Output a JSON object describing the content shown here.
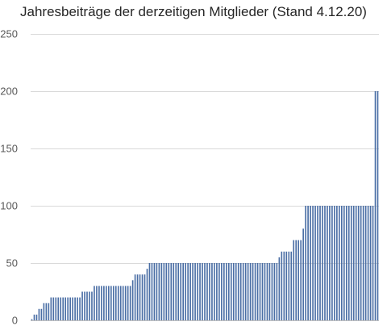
{
  "chart_data": {
    "type": "bar",
    "title": "Jahresbeiträge der derzeitigen Mitglieder (Stand 4.12.20)",
    "xlabel": "",
    "ylabel": "",
    "ylim": [
      0,
      250
    ],
    "yticks": [
      0,
      50,
      100,
      150,
      200,
      250
    ],
    "grid": true,
    "legend": "none",
    "bar_color": "#4a6ea5",
    "values": [
      1,
      5,
      5,
      10,
      10,
      15,
      15,
      15,
      20,
      20,
      20,
      20,
      20,
      20,
      20,
      20,
      20,
      20,
      20,
      20,
      20,
      25,
      25,
      25,
      25,
      25,
      30,
      30,
      30,
      30,
      30,
      30,
      30,
      30,
      30,
      30,
      30,
      30,
      30,
      30,
      30,
      30,
      35,
      40,
      40,
      40,
      40,
      40,
      45,
      50,
      50,
      50,
      50,
      50,
      50,
      50,
      50,
      50,
      50,
      50,
      50,
      50,
      50,
      50,
      50,
      50,
      50,
      50,
      50,
      50,
      50,
      50,
      50,
      50,
      50,
      50,
      50,
      50,
      50,
      50,
      50,
      50,
      50,
      50,
      50,
      50,
      50,
      50,
      50,
      50,
      50,
      50,
      50,
      50,
      50,
      50,
      50,
      50,
      50,
      50,
      50,
      50,
      50,
      55,
      60,
      60,
      60,
      60,
      60,
      70,
      70,
      70,
      70,
      80,
      100,
      100,
      100,
      100,
      100,
      100,
      100,
      100,
      100,
      100,
      100,
      100,
      100,
      100,
      100,
      100,
      100,
      100,
      100,
      100,
      100,
      100,
      100,
      100,
      100,
      100,
      100,
      100,
      100,
      200,
      200
    ]
  }
}
